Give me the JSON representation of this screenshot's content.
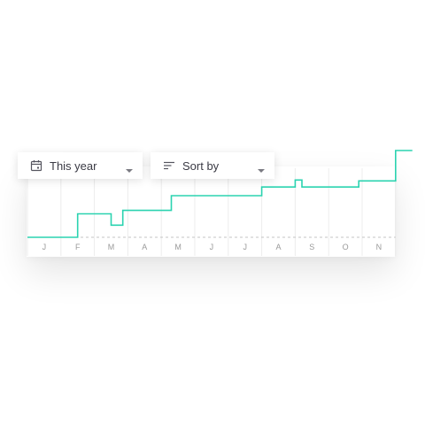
{
  "toolbar": {
    "date_filter": {
      "label": "This year",
      "icon": "calendar-icon"
    },
    "sort_filter": {
      "label": "Sort by",
      "icon": "sort-lines-icon"
    }
  },
  "colors": {
    "line": "#2bd3b0",
    "grid": "#ececec",
    "baseline": "#c4c4c4",
    "tick_text": "#9a9a9a",
    "dropdown_text": "#3a3a44"
  },
  "chart_data": {
    "type": "line",
    "step": true,
    "grid": true,
    "categories": [
      "J",
      "F",
      "M",
      "A",
      "M",
      "J",
      "J",
      "A",
      "S",
      "O",
      "N"
    ],
    "title": "",
    "xlabel": "",
    "ylabel": "",
    "ylim": [
      0,
      100
    ],
    "series": [
      {
        "points": [
          [
            0,
            0
          ],
          [
            1.5,
            0
          ],
          [
            1.5,
            27
          ],
          [
            2.5,
            27
          ],
          [
            2.5,
            14
          ],
          [
            2.85,
            14
          ],
          [
            2.85,
            31
          ],
          [
            4.3,
            31
          ],
          [
            4.3,
            48
          ],
          [
            7.0,
            48
          ],
          [
            7.0,
            58
          ],
          [
            8.0,
            58
          ],
          [
            8.0,
            66
          ],
          [
            8.2,
            66
          ],
          [
            8.2,
            58
          ],
          [
            9.9,
            58
          ],
          [
            9.9,
            65
          ],
          [
            11.0,
            65
          ],
          [
            11.0,
            100
          ],
          [
            11.5,
            100
          ]
        ]
      }
    ]
  }
}
